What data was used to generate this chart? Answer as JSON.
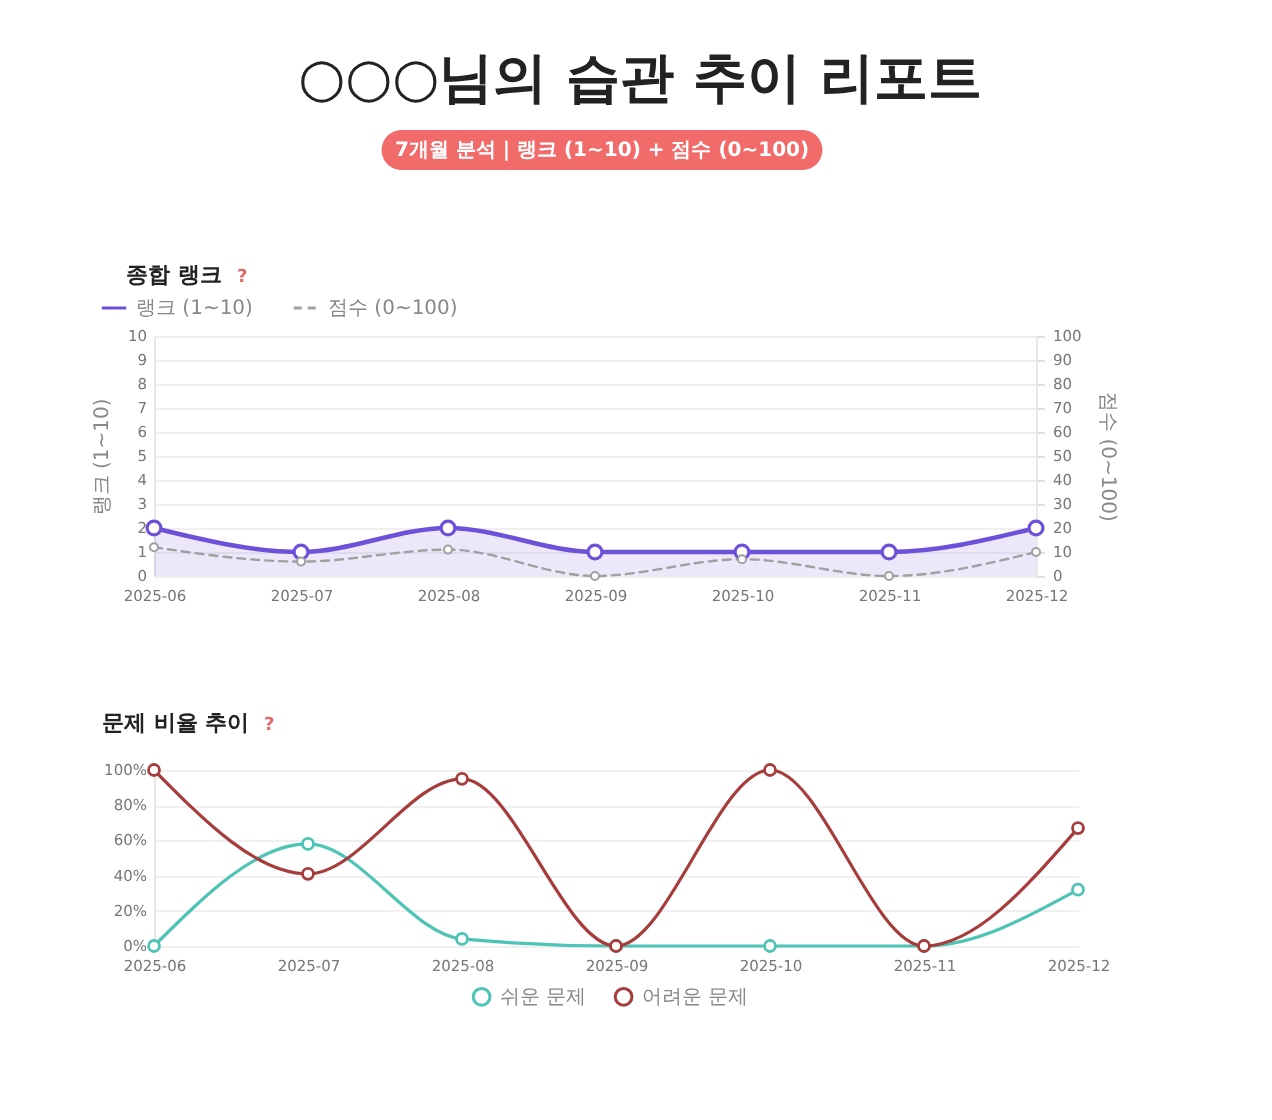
{
  "chart_data": [
    {
      "type": "other",
      "title": "○○○님의 습관 추이 리포트",
      "subtitle": "7개월 분석 | 랭크 (1~10) + 점수 (0~100)"
    },
    {
      "type": "line",
      "title": "종합 랭크",
      "annotations": [
        "?"
      ],
      "categories": [
        "2025-06",
        "2025-07",
        "2025-08",
        "2025-09",
        "2025-10",
        "2025-11",
        "2025-12"
      ],
      "series": [
        {
          "name": "랭크 (1~10)",
          "type": "area",
          "color": "#6d51d9",
          "values": [
            2,
            1,
            2,
            1,
            1,
            1,
            2
          ]
        },
        {
          "name": "점수 (0~100)",
          "axis": "y2",
          "color": "#a0a0a0",
          "line_style": "dashed",
          "values": [
            12,
            6,
            11,
            0,
            7,
            0,
            10
          ]
        }
      ],
      "ylabel": "랭크 (1~10)",
      "y2label": "점수 (0~100)",
      "ylim": [
        0,
        10
      ],
      "yticks": [
        0,
        1,
        2,
        3,
        4,
        5,
        6,
        7,
        8,
        9,
        10
      ],
      "y2lim": [
        0,
        100
      ],
      "y2ticks": [
        0,
        10,
        20,
        30,
        40,
        50,
        60,
        70,
        80,
        90,
        100
      ],
      "grid": "y",
      "legend": "top left",
      "marker": "circle",
      "line_style": "solid"
    },
    {
      "type": "line",
      "title": "문제 비율 추이",
      "annotations": [
        "?"
      ],
      "categories": [
        "2025-06",
        "2025-07",
        "2025-08",
        "2025-09",
        "2025-10",
        "2025-11",
        "2025-12"
      ],
      "series": [
        {
          "name": "쉬운 문제",
          "color": "#4dc4b5",
          "values": [
            0,
            58,
            4,
            0,
            0,
            0,
            32
          ]
        },
        {
          "name": "어려운 문제",
          "color": "#a63c3c",
          "values": [
            100,
            41,
            95,
            0,
            100,
            0,
            67
          ]
        }
      ],
      "ylim": [
        0,
        100
      ],
      "yticks": [
        {
          "value": 0,
          "label": "0%"
        },
        {
          "value": 20,
          "label": "20%"
        },
        {
          "value": 40,
          "label": "40%"
        },
        {
          "value": 60,
          "label": "60%"
        },
        {
          "value": 80,
          "label": "80%"
        },
        {
          "value": 100,
          "label": "100%"
        }
      ],
      "grid": "y",
      "legend": "bottom",
      "marker": "circle",
      "line_style": "solid"
    }
  ]
}
